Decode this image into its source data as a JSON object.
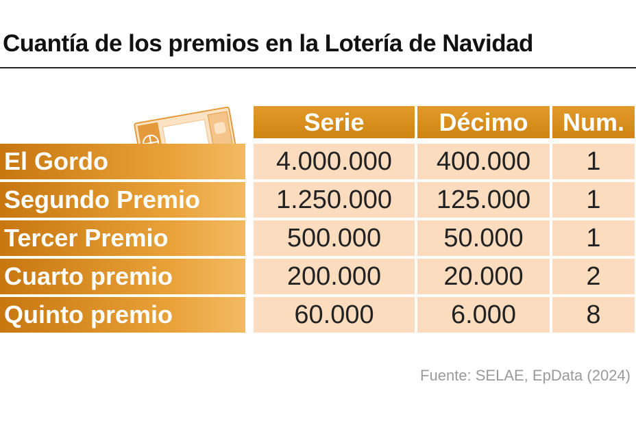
{
  "header": {
    "title": "Cuantía de los premios en la Lotería de Navidad"
  },
  "table": {
    "columns": [
      "Serie",
      "Décimo",
      "Num."
    ],
    "rows": [
      [
        "El Gordo",
        "4.000.000",
        "400.000",
        "1"
      ],
      [
        "Segundo Premio",
        "1.250.000",
        "125.000",
        "1"
      ],
      [
        "Tercer Premio",
        "500.000",
        "50.000",
        "1"
      ],
      [
        "Cuarto premio",
        "200.000",
        "20.000",
        "2"
      ],
      [
        "Quinto premio",
        "60.000",
        "6.000",
        "8"
      ]
    ]
  },
  "footer": {
    "source": "Fuente: SELAE, EpData (2024)"
  }
}
